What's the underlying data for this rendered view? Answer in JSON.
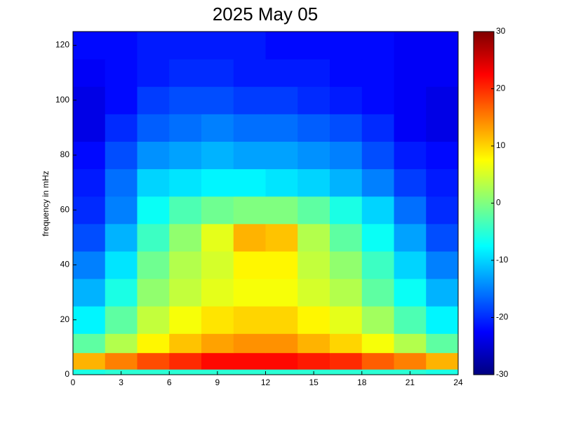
{
  "chart_data": {
    "type": "heatmap",
    "title": "2025 May 05",
    "y_label": "frequency in mHz",
    "x_edges": [
      0,
      2,
      4,
      6,
      8,
      10,
      12,
      14,
      16,
      18,
      20,
      22,
      24
    ],
    "y_edges": [
      0,
      2,
      8,
      15,
      25,
      35,
      45,
      55,
      65,
      75,
      85,
      95,
      105,
      115,
      125
    ],
    "values": [
      [
        -6,
        -5,
        -5,
        -5,
        -5,
        -5,
        -5,
        -5,
        -5,
        -5,
        -5,
        -6
      ],
      [
        12,
        15,
        18,
        20,
        22,
        22,
        22,
        21,
        20,
        17,
        15,
        12
      ],
      [
        -2,
        3,
        8,
        11,
        13,
        14,
        14,
        12,
        10,
        7,
        3,
        -2
      ],
      [
        -8,
        -2,
        4,
        7,
        9,
        10,
        10,
        8,
        6,
        2,
        -3,
        -8
      ],
      [
        -12,
        -6,
        1,
        4,
        6,
        7,
        7,
        5,
        3,
        -2,
        -7,
        -12
      ],
      [
        -15,
        -9,
        -1,
        3,
        5,
        8,
        8,
        4,
        1,
        -4,
        -10,
        -15
      ],
      [
        -18,
        -12,
        -4,
        1,
        6,
        12,
        11,
        3,
        -2,
        -7,
        -13,
        -18
      ],
      [
        -20,
        -15,
        -7,
        -3,
        -1,
        0,
        0,
        -2,
        -6,
        -10,
        -16,
        -20
      ],
      [
        -21,
        -16,
        -10,
        -9,
        -8,
        -8,
        -9,
        -10,
        -12,
        -15,
        -19,
        -21
      ],
      [
        -22,
        -18,
        -14,
        -13,
        -12,
        -13,
        -13,
        -14,
        -15,
        -18,
        -21,
        -22
      ],
      [
        -24,
        -20,
        -17,
        -16,
        -15,
        -16,
        -16,
        -17,
        -18,
        -20,
        -23,
        -24
      ],
      [
        -24,
        -22,
        -19,
        -18,
        -18,
        -19,
        -19,
        -20,
        -21,
        -22,
        -23,
        -24
      ],
      [
        -23,
        -22,
        -21,
        -20,
        -20,
        -21,
        -21,
        -21,
        -22,
        -22,
        -23,
        -23
      ],
      [
        -22,
        -22,
        -21,
        -21,
        -21,
        -21,
        -22,
        -22,
        -22,
        -22,
        -23,
        -23
      ]
    ],
    "colormap": "jet",
    "xlim": [
      0,
      24
    ],
    "xticks": [
      0,
      3,
      6,
      9,
      12,
      15,
      18,
      21,
      24
    ],
    "ylim": [
      0,
      125
    ],
    "yticks": [
      0,
      20,
      40,
      60,
      80,
      100,
      120
    ],
    "clim": [
      -30,
      30
    ],
    "cticks": [
      -30,
      -20,
      -10,
      0,
      10,
      20,
      30
    ]
  }
}
